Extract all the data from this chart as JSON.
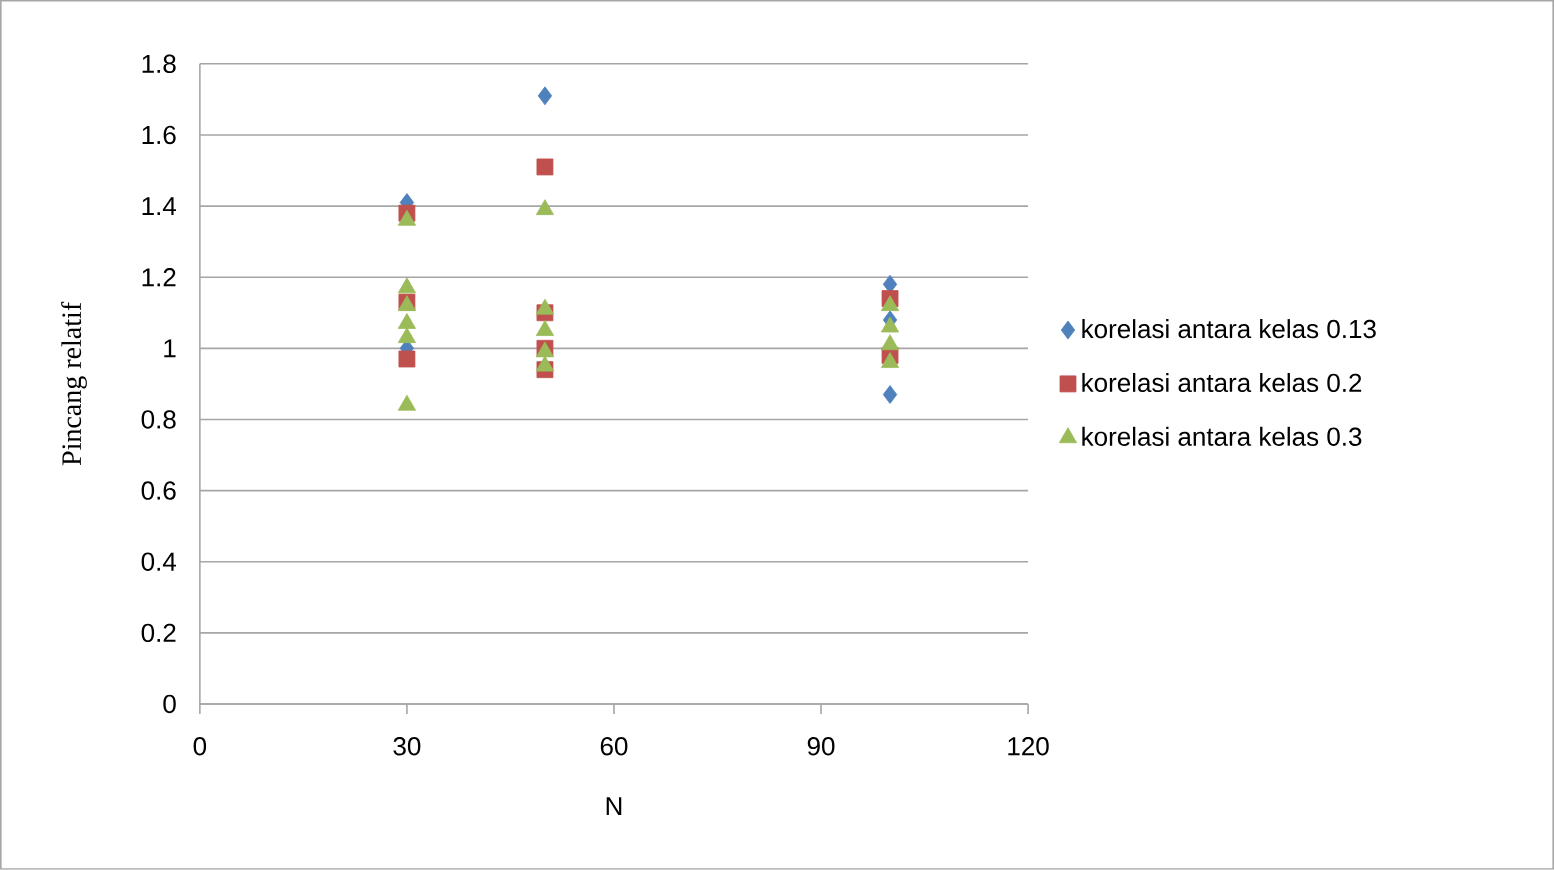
{
  "chart_data": {
    "type": "scatter",
    "xlabel": "N",
    "ylabel": "Pincang relatif",
    "xlim": [
      0,
      120
    ],
    "xticks": [
      0,
      30,
      60,
      90,
      120
    ],
    "ylim": [
      0,
      1.8
    ],
    "yticks": [
      0,
      0.2,
      0.4,
      0.6,
      0.8,
      1,
      1.2,
      1.4,
      1.6,
      1.8
    ],
    "grid": "y",
    "legend": "right",
    "series": [
      {
        "name": "korelasi antara kelas 0.13",
        "color": "#4f81bd",
        "marker": "diamond",
        "x": [
          30,
          30,
          50,
          100,
          100,
          100
        ],
        "values": [
          1.41,
          1.0,
          1.71,
          1.18,
          1.08,
          0.87
        ]
      },
      {
        "name": "korelasi antara kelas 0.2",
        "color": "#c0504d",
        "marker": "square",
        "x": [
          30,
          30,
          30,
          50,
          50,
          50,
          50,
          100,
          100
        ],
        "values": [
          1.38,
          1.13,
          0.97,
          1.51,
          1.1,
          1.0,
          0.94,
          1.14,
          0.98
        ]
      },
      {
        "name": "korelasi antara kelas 0.3",
        "color": "#9bbb59",
        "marker": "triangle",
        "x": [
          30,
          30,
          30,
          30,
          30,
          30,
          50,
          50,
          50,
          50,
          50,
          100,
          100,
          100,
          100
        ],
        "values": [
          1.36,
          1.17,
          1.12,
          1.07,
          1.03,
          0.84,
          1.39,
          1.11,
          1.05,
          0.99,
          0.95,
          1.12,
          1.06,
          1.01,
          0.96
        ]
      }
    ]
  }
}
